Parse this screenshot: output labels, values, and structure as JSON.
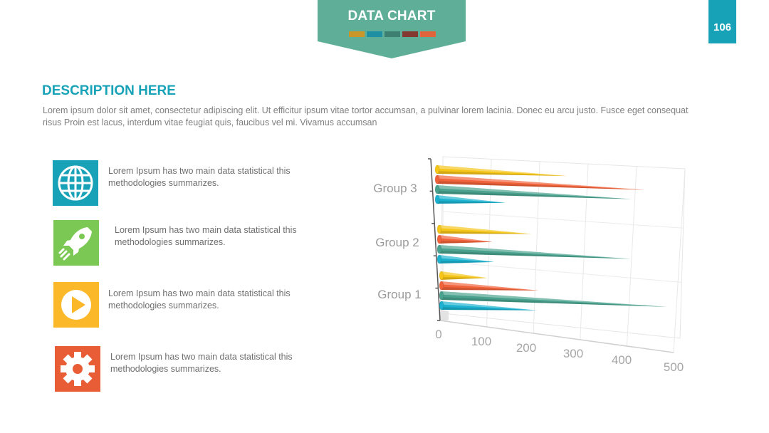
{
  "header": {
    "title": "DATA CHART",
    "page_number": "106",
    "banner_color": "#5fae98",
    "page_badge_color": "#17a2b8",
    "swatches": [
      "#c9962a",
      "#1f8fa3",
      "#3d7f71",
      "#833930",
      "#e0653d"
    ]
  },
  "description": {
    "title": "DESCRIPTION HERE",
    "body": "Lorem ipsum dolor sit amet, consectetur adipiscing elit. Ut efficitur ipsum vitae tortor accumsan, a pulvinar lorem lacinia. Donec eu arcu justo. Fusce eget consequat risus Proin est lacus, interdum vitae feugiat quis, faucibus vel mi.  Vivamus accumsan"
  },
  "features": [
    {
      "icon": "globe-icon",
      "color": "#17a2b8",
      "text": "Lorem Ipsum has two main data statistical this methodologies summarizes."
    },
    {
      "icon": "rocket-icon",
      "color": "#7cc855",
      "text": "Lorem Ipsum has two main data statistical this methodologies summarizes."
    },
    {
      "icon": "play-icon",
      "color": "#fbb829",
      "text": "Lorem Ipsum has two main data statistical this methodologies summarizes."
    },
    {
      "icon": "gear-icon",
      "color": "#e95d36",
      "text": "Lorem Ipsum has two main data statistical this methodologies summarizes."
    }
  ],
  "chart_data": {
    "type": "bar",
    "orientation": "horizontal",
    "style": "3d-cone",
    "categories": [
      "Group 1",
      "Group 2",
      "Group 3"
    ],
    "series": [
      {
        "color": "#f5c518",
        "values": [
          100,
          190,
          250
        ]
      },
      {
        "color": "#f0623a",
        "values": [
          210,
          110,
          400
        ]
      },
      {
        "color": "#4aa28e",
        "values": [
          480,
          390,
          380
        ]
      },
      {
        "color": "#1bb1cf",
        "values": [
          200,
          110,
          130
        ]
      }
    ],
    "x_ticks": [
      "0",
      "100",
      "200",
      "300",
      "400",
      "500"
    ],
    "xlim": [
      0,
      500
    ],
    "grid": true,
    "legend": "none"
  }
}
